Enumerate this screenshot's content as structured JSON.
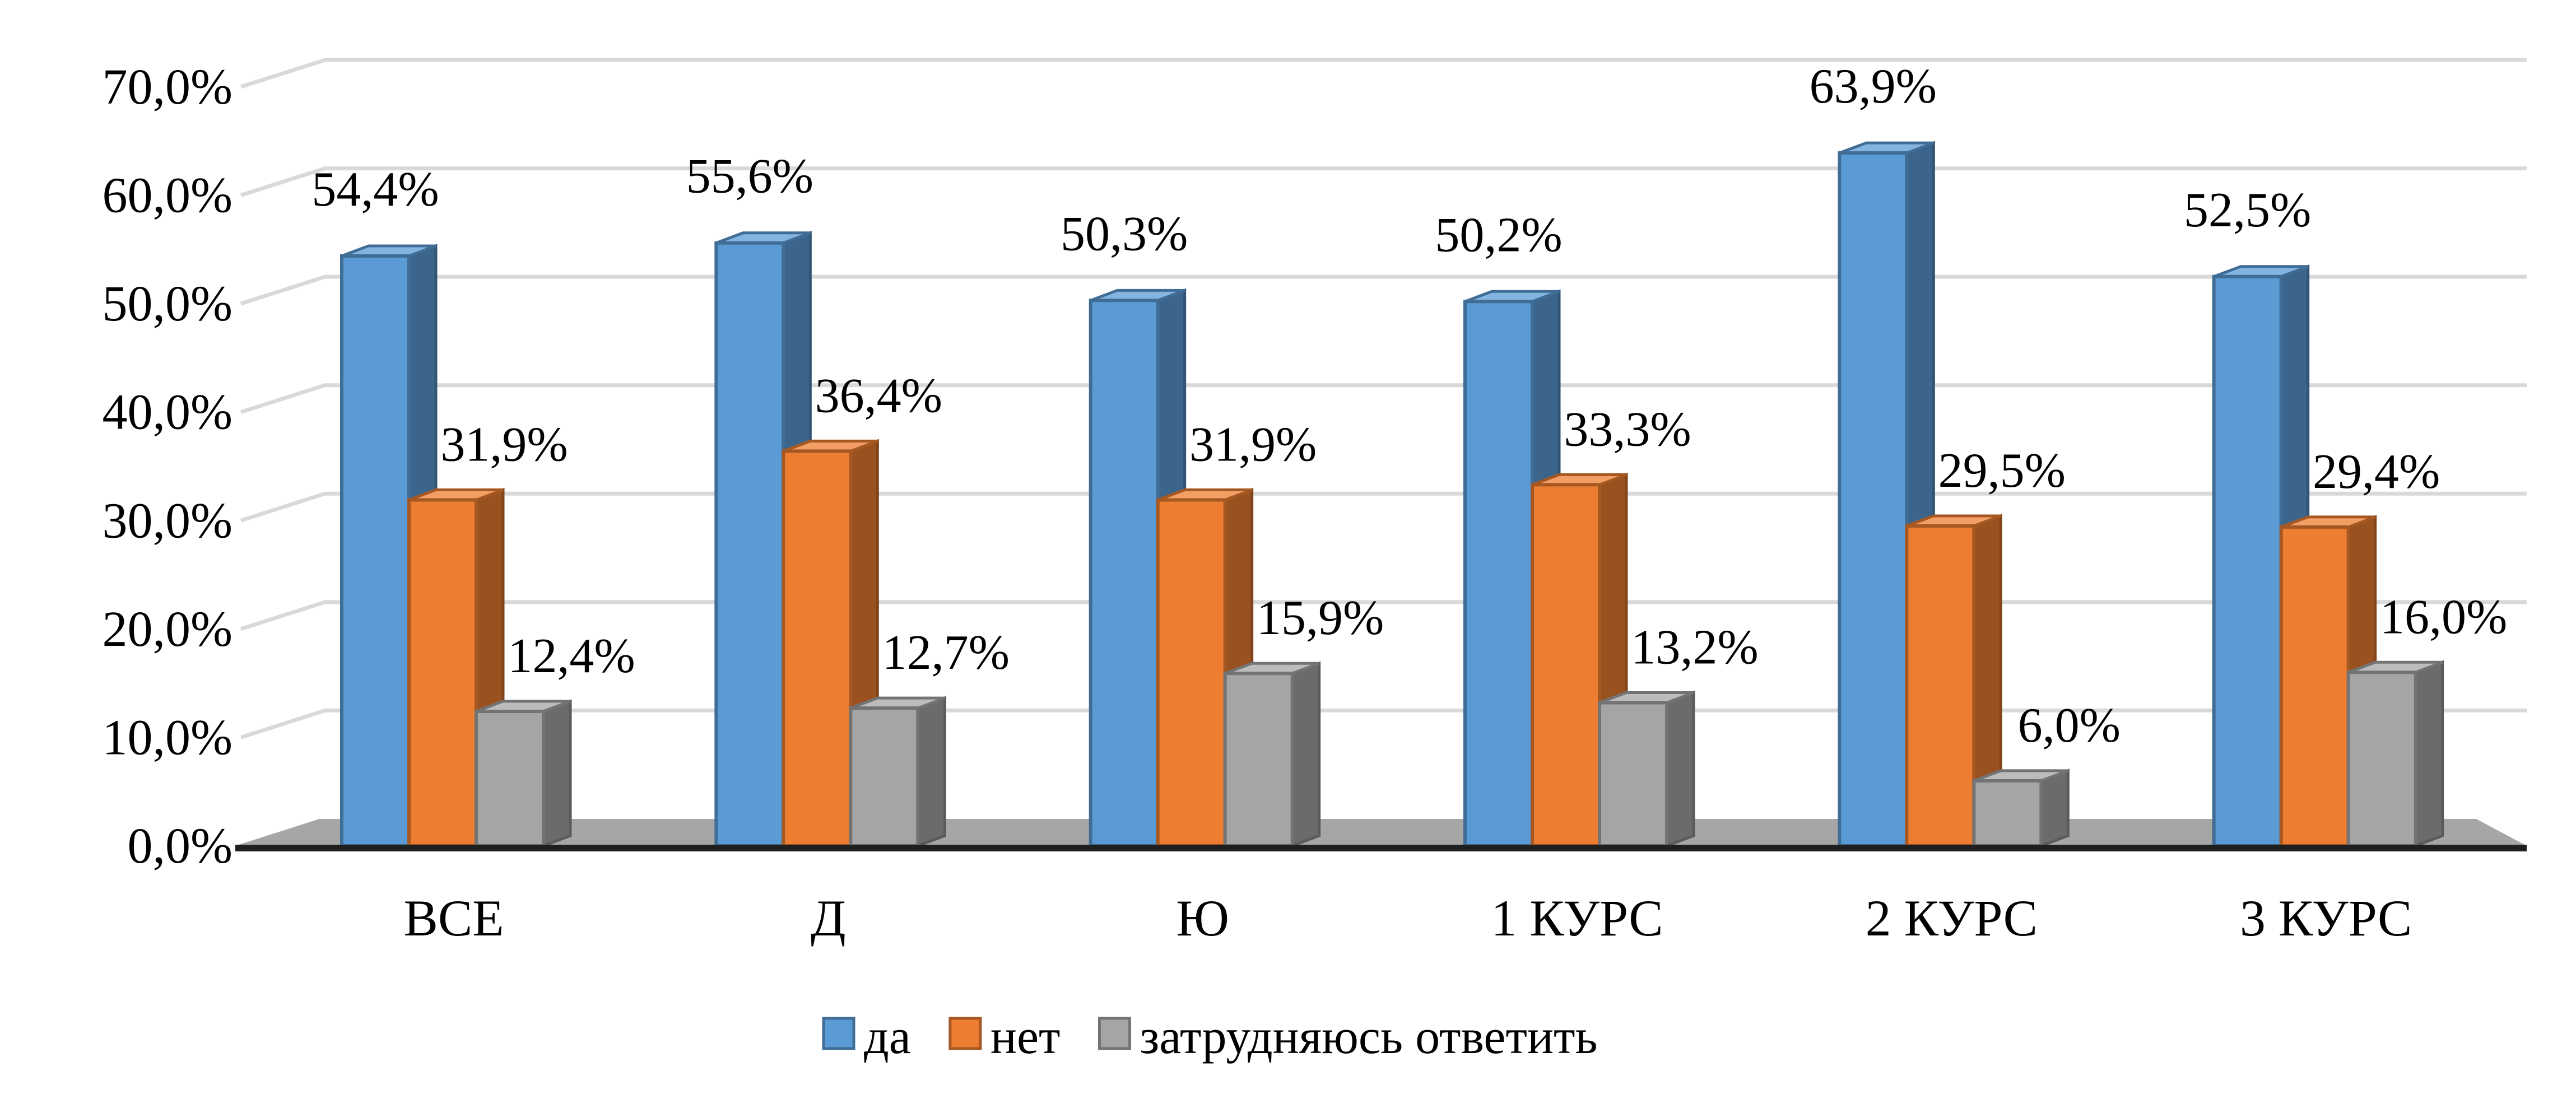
{
  "chart_data": {
    "type": "bar",
    "title": "",
    "xlabel": "",
    "ylabel": "",
    "ylim": [
      0,
      70
    ],
    "y_ticks": [
      "0,0%",
      "10,0%",
      "20,0%",
      "30,0%",
      "40,0%",
      "50,0%",
      "60,0%",
      "70,0%"
    ],
    "categories": [
      "ВСЕ",
      "Д",
      "Ю",
      "1 КУРС",
      "2 КУРС",
      "3 КУРС"
    ],
    "grid": true,
    "legend_position": "bottom",
    "series": [
      {
        "name": "да",
        "color": "#5B9BD5",
        "values": [
          54.4,
          55.6,
          50.3,
          50.2,
          63.9,
          52.5
        ],
        "labels": [
          "54,4%",
          "55,6%",
          "50,3%",
          "50,2%",
          "63,9%",
          "52,5%"
        ]
      },
      {
        "name": "нет",
        "color": "#ED7D31",
        "values": [
          31.9,
          36.4,
          31.9,
          33.3,
          29.5,
          29.4
        ],
        "labels": [
          "31,9%",
          "36,4%",
          "31,9%",
          "33,3%",
          "29,5%",
          "29,4%"
        ]
      },
      {
        "name": "затрудняюсь ответить",
        "color": "#A5A5A5",
        "values": [
          12.4,
          12.7,
          15.9,
          13.2,
          6.0,
          16.0
        ],
        "labels": [
          "12,4%",
          "12,7%",
          "15,9%",
          "13,2%",
          "6,0%",
          "16,0%"
        ]
      }
    ]
  }
}
